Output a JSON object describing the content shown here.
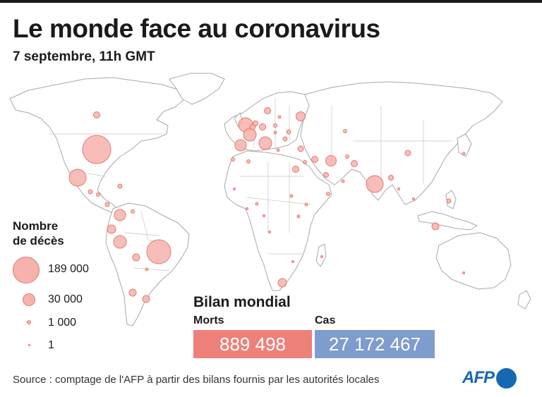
{
  "header": {
    "title": "Le monde face au coronavirus",
    "subtitle": "7 septembre, 11h GMT"
  },
  "legend": {
    "title_line1": "Nombre",
    "title_line2": "de décès",
    "items": [
      {
        "label": "189 000"
      },
      {
        "label": "30 000"
      },
      {
        "label": "1 000"
      },
      {
        "label": "1"
      }
    ]
  },
  "bilan": {
    "title": "Bilan mondial",
    "morts_label": "Morts",
    "morts_value": "889 498",
    "cas_label": "Cas",
    "cas_value": "27 172 467"
  },
  "footer": {
    "source": "Source : comptage de l'AFP à partir des bilans fournis par les autorités locales",
    "logo": "AFP"
  },
  "colors": {
    "bubble_fill": "#f6b3ad",
    "bubble_stroke": "#e57870",
    "morts_box": "#ee807a",
    "cas_box": "#7f9ccf",
    "land": "#ffffff",
    "borders": "#b8b8b8",
    "afp_blue": "#1569b3"
  }
}
